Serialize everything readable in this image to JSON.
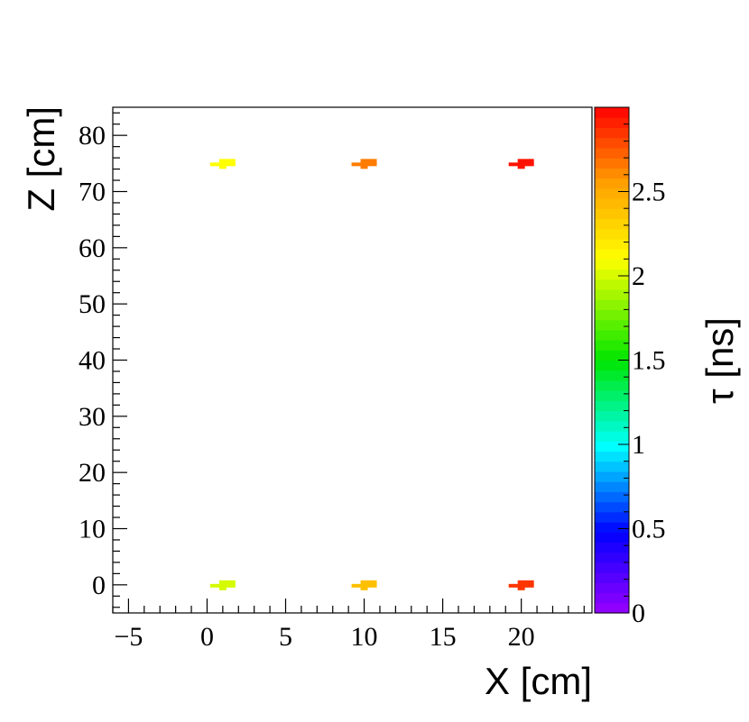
{
  "chart_data": {
    "type": "heatmap",
    "title": "",
    "xlabel": "X [cm]",
    "ylabel": "Z [cm]",
    "zlabel": "τ [ns]",
    "xlim": [
      -6,
      24.5
    ],
    "ylim": [
      -5,
      85
    ],
    "zlim": [
      0,
      3.0
    ],
    "x_ticks": [
      -5,
      0,
      5,
      10,
      15,
      20
    ],
    "y_ticks": [
      0,
      10,
      20,
      30,
      40,
      50,
      60,
      70,
      80
    ],
    "z_ticks": [
      0,
      0.5,
      1,
      1.5,
      2,
      2.5
    ],
    "x_tick_labels": [
      "−5",
      "0",
      "5",
      "10",
      "15",
      "20"
    ],
    "y_tick_labels": [
      "0",
      "10",
      "20",
      "30",
      "40",
      "50",
      "60",
      "70",
      "80"
    ],
    "z_tick_labels": [
      "0",
      "0.5",
      "1",
      "1.5",
      "2",
      "2.5"
    ],
    "grid": false,
    "colorbar": "right",
    "points": [
      {
        "x": 1,
        "z": 0,
        "tau": 2.0
      },
      {
        "x": 10,
        "z": 0,
        "tau": 2.4
      },
      {
        "x": 20,
        "z": 0,
        "tau": 2.85
      },
      {
        "x": 1,
        "z": 75,
        "tau": 2.1
      },
      {
        "x": 10,
        "z": 75,
        "tau": 2.65
      },
      {
        "x": 20,
        "z": 75,
        "tau": 2.95
      }
    ]
  }
}
